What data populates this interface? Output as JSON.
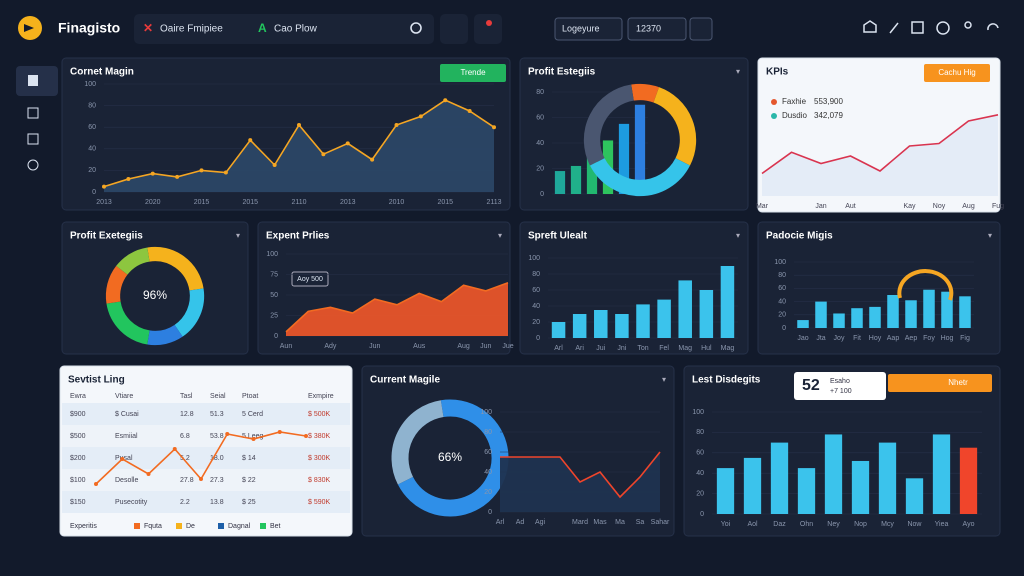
{
  "header": {
    "brand": "Finagisto",
    "tabs": [
      "Oaire Fmipiee",
      "Cao Plow"
    ],
    "tools": [
      "Logeyure",
      "12370"
    ]
  },
  "panels": [
    {
      "title": "Cornet Magin",
      "button": "Trende",
      "button_color": "#22b35e",
      "charts": [
        {
          "type": "area",
          "color": "#f5a623",
          "fill": "#2b4766",
          "dots": true,
          "ylim": [
            0,
            100
          ],
          "yticks": [
            0,
            20,
            40,
            60,
            80,
            100
          ],
          "categories": [
            "2013",
            null,
            "2020",
            null,
            "2015",
            null,
            "2015",
            null,
            "2110",
            null,
            "2013",
            null,
            "2010",
            null,
            "2015",
            null,
            "2113"
          ],
          "values": [
            5,
            12,
            17,
            14,
            20,
            18,
            48,
            25,
            62,
            35,
            45,
            30,
            62,
            70,
            85,
            75,
            60
          ]
        }
      ]
    },
    {
      "title": "Profit Estegiis",
      "charts": [
        {
          "type": "bar",
          "colors": [
            "#1fa89a",
            "#20b08a",
            "#22b870",
            "#2ec45e",
            "#1d9be0",
            "#2d7fe0"
          ],
          "ylim": [
            0,
            80
          ],
          "yticks": [
            0,
            20,
            40,
            60,
            80
          ],
          "values": [
            18,
            22,
            35,
            42,
            55,
            70
          ]
        },
        {
          "type": "donut",
          "colors": [
            "#f26b21",
            "#f5b21c",
            "#35c4ea",
            "#4a5670"
          ],
          "values": [
            8,
            27,
            35,
            30
          ]
        }
      ]
    },
    {
      "title": "KPIs",
      "theme": "light",
      "button": "Cachu Hig",
      "button_color": "#f7931e",
      "legend": [
        {
          "name": "Faxhie",
          "value": "553,900",
          "color": "#e4572e"
        },
        {
          "name": "Dusdio",
          "value": "342,079",
          "color": "#2ab7a9"
        }
      ],
      "charts": [
        {
          "type": "area",
          "color": "#d9344f",
          "fill": "#e3ebf7",
          "ylim": [
            0,
            80
          ],
          "categories": [
            "Mar",
            null,
            "Jan",
            "Aut",
            null,
            "Kay",
            "Noy",
            "Aug",
            "Fug"
          ],
          "values": [
            18,
            35,
            26,
            32,
            20,
            40,
            42,
            60,
            65
          ]
        }
      ]
    },
    {
      "title": "Profit Exetegiis",
      "charts": [
        {
          "type": "donut",
          "center_label": "96%",
          "colors": [
            "#f5b21c",
            "#35c4ea",
            "#2d7fe0",
            "#22c55e",
            "#f26b21",
            "#8dc63f"
          ],
          "values": [
            25,
            18,
            12,
            20,
            13,
            12
          ]
        }
      ]
    },
    {
      "title": "Expent Prlies",
      "annotation": "Aoy 500",
      "charts": [
        {
          "type": "area",
          "color": "#f26b21",
          "fill": "#e8552a",
          "ylim": [
            0,
            100
          ],
          "yticks": [
            0,
            25,
            50,
            75,
            100
          ],
          "categories": [
            "Aun",
            null,
            "Ady",
            null,
            "Jun",
            null,
            "Aus",
            null,
            "Aug",
            "Jun",
            "Jue"
          ],
          "values": [
            5,
            30,
            35,
            28,
            45,
            38,
            52,
            42,
            62,
            55,
            65
          ]
        }
      ]
    },
    {
      "title": "Spreft Ulealt",
      "charts": [
        {
          "type": "bar",
          "color": "#3bc3ec",
          "ylim": [
            0,
            100
          ],
          "yticks": [
            0,
            20,
            40,
            60,
            80,
            100
          ],
          "categories": [
            "Arl",
            "Ari",
            "Jui",
            "Jni",
            "Ton",
            "Fel",
            "Mag",
            "Hul",
            "Mag"
          ],
          "values": [
            20,
            30,
            35,
            30,
            42,
            48,
            72,
            60,
            90
          ]
        }
      ]
    },
    {
      "title": "Padocie Migis",
      "charts": [
        {
          "type": "bar",
          "color": "#3bc3ec",
          "ylim": [
            0,
            100
          ],
          "yticks": [
            0,
            20,
            40,
            60,
            80,
            100
          ],
          "categories": [
            "Jao",
            "Jta",
            "Joy",
            "Fit",
            "Hoy",
            "Aap",
            "Aep",
            "Foy",
            "Hog",
            "Fig"
          ],
          "values": [
            12,
            40,
            22,
            30,
            32,
            50,
            42,
            58,
            55,
            48
          ]
        }
      ]
    },
    {
      "title": "Sevtist Ling",
      "theme": "light",
      "table": {
        "columns": [
          "Ewra",
          "Vtiare",
          "Tasl",
          "Seial",
          "Ptoat",
          "Exmpire"
        ],
        "rows": [
          [
            "$900",
            "$ Cusai",
            "12.8",
            "51.3",
            "5 Cerd",
            "$ 500K"
          ],
          [
            "$500",
            "Esmiial",
            "6.8",
            "53.8",
            "5 Leeg",
            "$ 380K"
          ],
          [
            "$200",
            "Pusal",
            "5.2",
            "18.0",
            "$ 14",
            "$ 300K"
          ],
          [
            "$100",
            "Desolle",
            "27.8",
            "27.3",
            "$ 22",
            "$ 830K"
          ],
          [
            "$150",
            "Pusecotity",
            "2.2",
            "13.8",
            "$ 25",
            "$ 590K"
          ]
        ]
      },
      "legend_title": "Experitis",
      "legend": [
        {
          "name": "Fquta",
          "color": "#f26b21"
        },
        {
          "name": "De",
          "color": "#f5b21c"
        },
        {
          "name": "Dagnal",
          "color": "#1d5fa8"
        },
        {
          "name": "Bet",
          "color": "#22c55e"
        }
      ],
      "charts": [
        {
          "type": "line",
          "color": "#f26b21",
          "dots": true,
          "ylim": [
            0,
            80
          ],
          "values": [
            10,
            35,
            20,
            45,
            15,
            60,
            55,
            62,
            58
          ]
        }
      ]
    },
    {
      "title": "Current Magile",
      "charts": [
        {
          "type": "donut",
          "center_label": "66%",
          "colors": [
            "#2f8fe8",
            "#8fb3cf"
          ],
          "values": [
            70,
            30
          ]
        },
        {
          "type": "line",
          "color": "#f0452b",
          "fill": "#1f3350",
          "ylim": [
            0,
            100
          ],
          "yticks": [
            0,
            20,
            40,
            60,
            80,
            100
          ],
          "categories": [
            "Arl",
            "Ad",
            "Agi",
            null,
            "Mard",
            "Mas",
            "Ma",
            "Sa",
            "Sahar"
          ],
          "values": [
            55,
            55,
            55,
            55,
            30,
            40,
            15,
            35,
            60
          ]
        }
      ]
    },
    {
      "title": "Lest Disdegits",
      "kpi": {
        "value": "52",
        "name": "Esaho",
        "delta": "+7 100"
      },
      "button": "Nhetr",
      "button_color": "#f7931e",
      "charts": [
        {
          "type": "bar",
          "colors": [
            "#3bc3ec",
            "#3bc3ec",
            "#3bc3ec",
            "#3bc3ec",
            "#3bc3ec",
            "#3bc3ec",
            "#3bc3ec",
            "#3bc3ec",
            "#3bc3ec",
            "#f0452b"
          ],
          "ylim": [
            0,
            100
          ],
          "yticks": [
            0,
            20,
            40,
            60,
            80,
            100
          ],
          "categories": [
            "Yoi",
            "Aol",
            "Daz",
            "Ohn",
            "Ney",
            "Nop",
            "Mcy",
            "Now",
            "Yiea",
            "Ayo"
          ],
          "values": [
            45,
            55,
            70,
            45,
            78,
            52,
            70,
            35,
            78,
            65
          ]
        }
      ]
    }
  ]
}
